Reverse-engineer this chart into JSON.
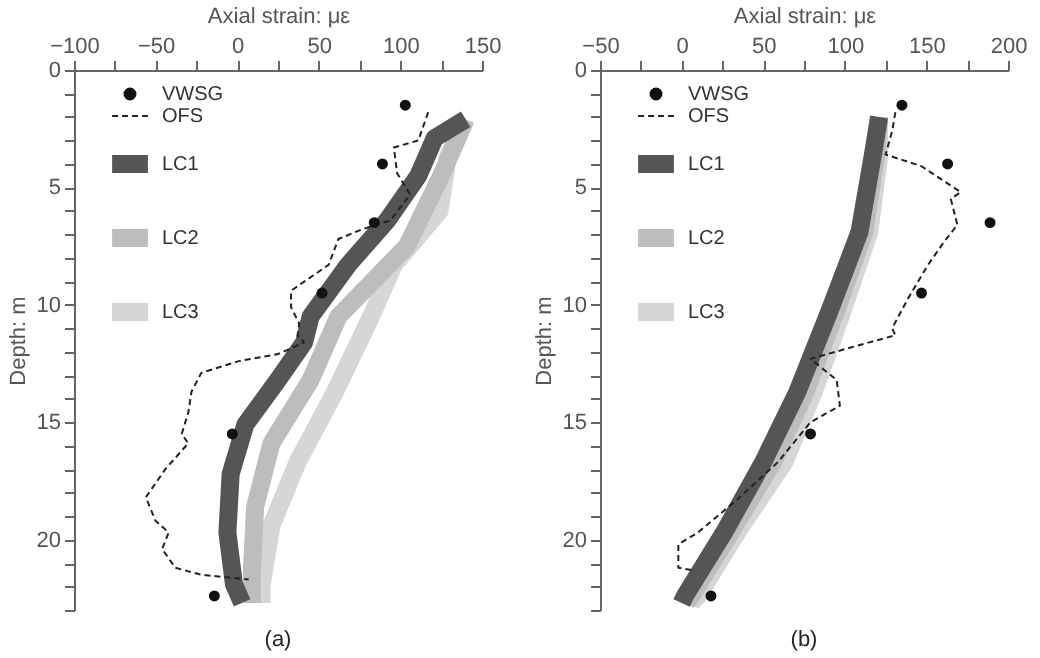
{
  "chart_data": [
    {
      "type": "line",
      "xlabel": "Axial strain: με",
      "ylabel": "Depth: m",
      "annotations": [
        "(a)"
      ],
      "legend": "top left",
      "grid": false,
      "xlim": [
        -100,
        150
      ],
      "xticks": [
        -100,
        {
          "value": -75,
          "label": null
        },
        -50,
        {
          "value": -25,
          "label": null
        },
        0,
        {
          "value": 25,
          "label": null
        },
        50,
        {
          "value": 75,
          "label": null
        },
        100,
        {
          "value": 125,
          "label": null
        },
        150
      ],
      "ylim": [
        23,
        0
      ],
      "yticks": [
        0,
        {
          "value": 1,
          "label": null
        },
        {
          "value": 2,
          "label": null
        },
        {
          "value": 3,
          "label": null
        },
        {
          "value": 4,
          "label": null
        },
        5,
        {
          "value": 6,
          "label": null
        },
        {
          "value": 7,
          "label": null
        },
        {
          "value": 8,
          "label": null
        },
        {
          "value": 9,
          "label": null
        },
        10,
        {
          "value": 11,
          "label": null
        },
        {
          "value": 12,
          "label": null
        },
        {
          "value": 13,
          "label": null
        },
        {
          "value": 14,
          "label": null
        },
        15,
        {
          "value": 16,
          "label": null
        },
        {
          "value": 17,
          "label": null
        },
        {
          "value": 18,
          "label": null
        },
        {
          "value": 19,
          "label": null
        },
        20,
        {
          "value": 21,
          "label": null
        },
        {
          "value": 22,
          "label": null
        },
        {
          "value": 23,
          "label": null
        }
      ],
      "series": [
        {
          "name": "VWSG",
          "type": "scatter",
          "marker": "circle",
          "color": "#111111",
          "x": [
            103,
            89,
            84,
            52,
            -3,
            -14
          ],
          "values": [
            1.5,
            4.0,
            6.5,
            9.5,
            15.5,
            22.4
          ]
        },
        {
          "name": "OFS",
          "type": "line",
          "line_style": "dashed",
          "color": "#222222",
          "x": [
            117,
            111,
            96,
            98,
            106,
            94,
            76,
            62,
            56,
            33,
            33,
            38,
            37,
            41,
            25,
            1,
            -22,
            -28,
            -30,
            -34,
            -30,
            -44,
            -56,
            -50,
            -42,
            -46,
            -38,
            -22,
            7
          ],
          "values": [
            1.8,
            3.0,
            3.3,
            4.4,
            5.3,
            6.4,
            6.8,
            7.2,
            8.3,
            9.4,
            10.1,
            10.8,
            11.3,
            11.6,
            12.1,
            12.4,
            12.9,
            13.7,
            14.6,
            15.5,
            15.9,
            17.0,
            18.2,
            19.2,
            19.7,
            20.4,
            21.2,
            21.5,
            21.7
          ]
        },
        {
          "name": "LC1",
          "type": "line",
          "line_style": "solid",
          "color": "#555555",
          "x": [
            140,
            121,
            111,
            92,
            68,
            45,
            41,
            25,
            5,
            -4,
            -6,
            -2,
            3
          ],
          "values": [
            2.1,
            2.9,
            4.5,
            6.4,
            8.3,
            10.5,
            11.6,
            13.2,
            15.1,
            17.2,
            19.7,
            21.9,
            22.7
          ]
        },
        {
          "name": "LC2",
          "type": "line",
          "line_style": "solid",
          "color": "#bdbdbd",
          "x": [
            140,
            125,
            104,
            62,
            45,
            21,
            11,
            9,
            9
          ],
          "values": [
            2.1,
            4.5,
            7.5,
            10.5,
            13.2,
            15.9,
            18.6,
            21.3,
            22.7
          ]
        },
        {
          "name": "LC3",
          "type": "line",
          "line_style": "solid",
          "color": "#d6d6d6",
          "x": [
            140,
            129,
            124,
            96,
            82,
            60,
            37,
            21,
            15,
            15
          ],
          "values": [
            2.1,
            3.7,
            6.0,
            8.3,
            10.5,
            13.7,
            16.7,
            19.4,
            21.9,
            22.7
          ]
        }
      ]
    },
    {
      "type": "line",
      "xlabel": "Axial strain: με",
      "ylabel": "Depth: m",
      "annotations": [
        "(b)"
      ],
      "legend": "top left",
      "grid": false,
      "xlim": [
        -50,
        200
      ],
      "xticks": [
        -50,
        {
          "value": -25,
          "label": null
        },
        0,
        {
          "value": 25,
          "label": null
        },
        50,
        {
          "value": 75,
          "label": null
        },
        100,
        {
          "value": 125,
          "label": null
        },
        150,
        {
          "value": 175,
          "label": null
        },
        200
      ],
      "ylim": [
        23,
        0
      ],
      "yticks": [
        0,
        {
          "value": 1,
          "label": null
        },
        {
          "value": 2,
          "label": null
        },
        {
          "value": 3,
          "label": null
        },
        {
          "value": 4,
          "label": null
        },
        5,
        {
          "value": 6,
          "label": null
        },
        {
          "value": 7,
          "label": null
        },
        {
          "value": 8,
          "label": null
        },
        {
          "value": 9,
          "label": null
        },
        10,
        {
          "value": 11,
          "label": null
        },
        {
          "value": 12,
          "label": null
        },
        {
          "value": 13,
          "label": null
        },
        {
          "value": 14,
          "label": null
        },
        15,
        {
          "value": 16,
          "label": null
        },
        {
          "value": 17,
          "label": null
        },
        {
          "value": 18,
          "label": null
        },
        {
          "value": 19,
          "label": null
        },
        20,
        {
          "value": 21,
          "label": null
        },
        {
          "value": 22,
          "label": null
        },
        {
          "value": 23,
          "label": null
        }
      ],
      "series": [
        {
          "name": "VWSG",
          "type": "scatter",
          "marker": "circle",
          "color": "#111111",
          "x": [
            135,
            163,
            189,
            147,
            79,
            18
          ],
          "values": [
            1.5,
            4.0,
            6.5,
            9.5,
            15.5,
            22.4
          ]
        },
        {
          "name": "OFS",
          "type": "line",
          "line_style": "dashed",
          "color": "#222222",
          "x": [
            131,
            129,
            125,
            147,
            171,
            165,
            169,
            161,
            151,
            139,
            129,
            131,
            115,
            79,
            95,
            97,
            79,
            59,
            34,
            10,
            -2,
            -2,
            6
          ],
          "values": [
            1.8,
            2.6,
            3.6,
            4.1,
            5.2,
            5.5,
            6.6,
            7.3,
            8.3,
            9.7,
            11.0,
            11.3,
            11.6,
            12.3,
            13.2,
            14.3,
            15.0,
            16.7,
            18.3,
            19.7,
            20.2,
            21.2,
            21.3
          ]
        },
        {
          "name": "LC1",
          "type": "line",
          "line_style": "solid",
          "color": "#555555",
          "x": [
            121,
            117,
            109,
            91,
            71,
            50,
            26,
            2,
            0
          ],
          "values": [
            2.0,
            3.7,
            6.9,
            10.2,
            13.7,
            16.7,
            19.7,
            22.4,
            22.7
          ]
        },
        {
          "name": "LC2",
          "type": "line",
          "line_style": "solid",
          "color": "#bdbdbd",
          "x": [
            121,
            119,
            112,
            95,
            76,
            56,
            30,
            6,
            3
          ],
          "values": [
            2.0,
            3.7,
            6.9,
            10.2,
            13.7,
            16.7,
            19.7,
            22.4,
            22.7
          ]
        },
        {
          "name": "LC3",
          "type": "line",
          "line_style": "solid",
          "color": "#d6d6d6",
          "x": [
            121,
            121,
            115,
            99,
            81,
            63,
            34,
            10,
            6
          ],
          "values": [
            2.0,
            3.7,
            6.9,
            10.2,
            13.7,
            16.7,
            19.7,
            22.4,
            22.7
          ]
        }
      ]
    }
  ]
}
